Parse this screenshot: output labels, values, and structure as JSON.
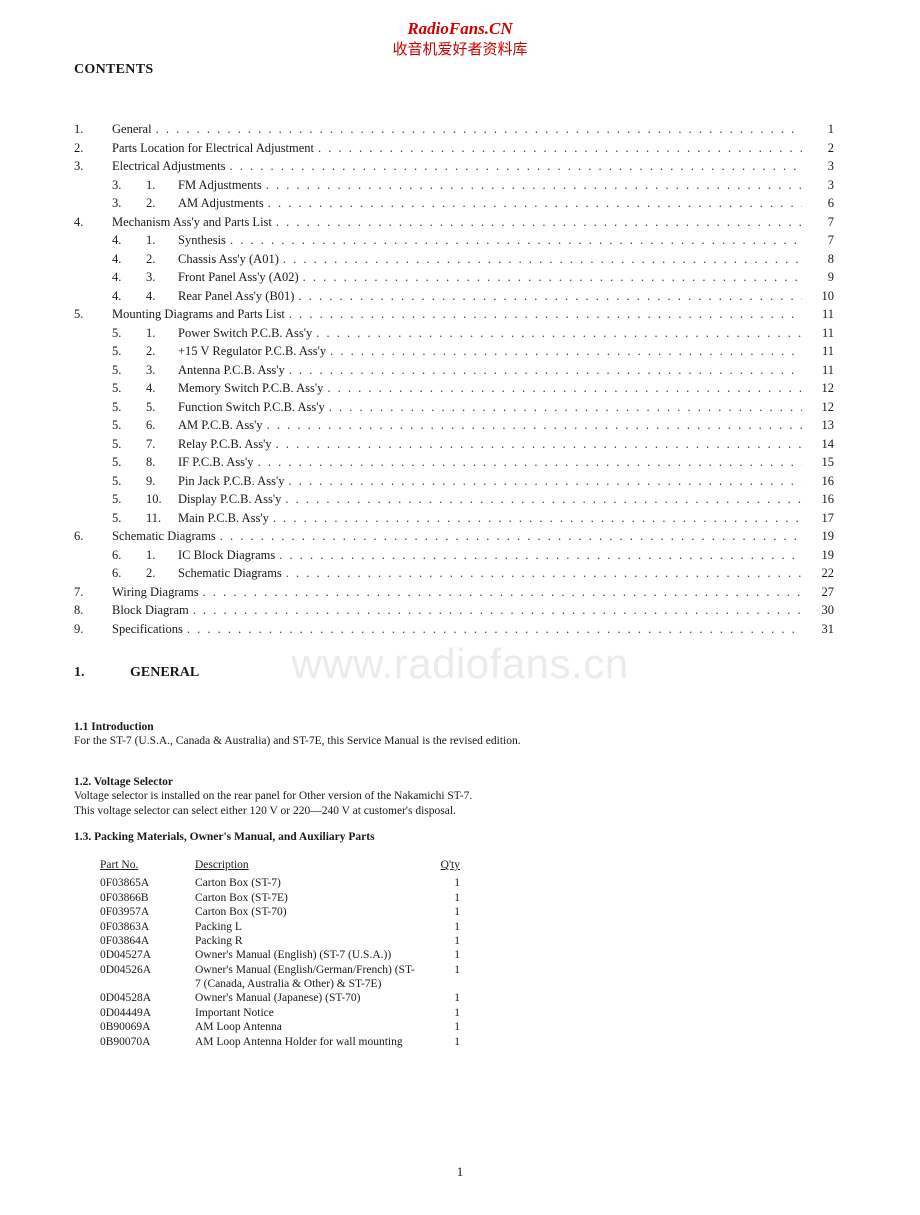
{
  "watermark": {
    "header_line1": "RadioFans.CN",
    "header_line2": "收音机爱好者资料库",
    "body": "www.radiofans.cn"
  },
  "contents_heading": "CONTENTS",
  "toc": [
    {
      "n": "1.",
      "title": "General",
      "page": "1"
    },
    {
      "n": "2.",
      "title": "Parts Location for Electrical Adjustment",
      "page": "2"
    },
    {
      "n": "3.",
      "title": "Electrical Adjustments",
      "page": "3"
    },
    {
      "sa": "3.",
      "sb": "1.",
      "title": "FM Adjustments",
      "page": "3"
    },
    {
      "sa": "3.",
      "sb": "2.",
      "title": "AM Adjustments",
      "page": "6"
    },
    {
      "n": "4.",
      "title": "Mechanism Ass'y and Parts List",
      "page": "7"
    },
    {
      "sa": "4.",
      "sb": "1.",
      "title": "Synthesis",
      "page": "7"
    },
    {
      "sa": "4.",
      "sb": "2.",
      "title": "Chassis Ass'y (A01)",
      "page": "8"
    },
    {
      "sa": "4.",
      "sb": "3.",
      "title": "Front Panel Ass'y (A02)",
      "page": "9"
    },
    {
      "sa": "4.",
      "sb": "4.",
      "title": "Rear Panel Ass'y (B01)",
      "page": "10"
    },
    {
      "n": "5.",
      "title": "Mounting Diagrams and Parts List",
      "page": "11"
    },
    {
      "sa": "5.",
      "sb": "1.",
      "title": "Power Switch P.C.B. Ass'y",
      "page": "11"
    },
    {
      "sa": "5.",
      "sb": "2.",
      "title": "+15 V Regulator P.C.B. Ass'y",
      "page": "11"
    },
    {
      "sa": "5.",
      "sb": "3.",
      "title": "Antenna P.C.B. Ass'y",
      "page": "11"
    },
    {
      "sa": "5.",
      "sb": "4.",
      "title": "Memory Switch P.C.B. Ass'y",
      "page": "12"
    },
    {
      "sa": "5.",
      "sb": "5.",
      "title": "Function Switch P.C.B. Ass'y",
      "page": "12"
    },
    {
      "sa": "5.",
      "sb": "6.",
      "title": "AM P.C.B. Ass'y",
      "page": "13"
    },
    {
      "sa": "5.",
      "sb": "7.",
      "title": "Relay P.C.B. Ass'y",
      "page": "14"
    },
    {
      "sa": "5.",
      "sb": "8.",
      "title": "IF P.C.B. Ass'y",
      "page": "15"
    },
    {
      "sa": "5.",
      "sb": "9.",
      "title": "Pin Jack P.C.B. Ass'y",
      "page": "16"
    },
    {
      "sa": "5.",
      "sb": "10.",
      "title": "Display P.C.B. Ass'y",
      "page": "16"
    },
    {
      "sa": "5.",
      "sb": "11.",
      "title": "Main P.C.B. Ass'y",
      "page": "17"
    },
    {
      "n": "6.",
      "title": "Schematic Diagrams",
      "page": "19"
    },
    {
      "sa": "6.",
      "sb": "1.",
      "title": "IC Block Diagrams",
      "page": "19"
    },
    {
      "sa": "6.",
      "sb": "2.",
      "title": "Schematic Diagrams",
      "page": "22"
    },
    {
      "n": "7.",
      "title": "Wiring Diagrams",
      "page": "27"
    },
    {
      "n": "8.",
      "title": "Block Diagram",
      "page": "30"
    },
    {
      "n": "9.",
      "title": "Specifications",
      "page": "31"
    }
  ],
  "s1": {
    "num": "1.",
    "title": "GENERAL",
    "b11_head": "1.1  Introduction",
    "b11_text": "For the ST-7 (U.S.A., Canada & Australia) and ST-7E, this Service Manual is the revised edition.",
    "b12_head": "1.2.  Voltage Selector",
    "b12_text1": "Voltage selector is installed on the rear panel for Other version of the Nakamichi ST-7.",
    "b12_text2": "This voltage selector can select either 120 V or 220—240 V at customer's disposal.",
    "b13_head": "1.3.  Packing Materials, Owner's Manual, and Auxiliary Parts"
  },
  "parts_table": {
    "h_part": "Part No.",
    "h_desc": "Description",
    "h_qty": "Q'ty",
    "rows": [
      {
        "p": "0F03865A",
        "d": "Carton Box (ST-7)",
        "q": "1"
      },
      {
        "p": "0F03866B",
        "d": "Carton Box (ST-7E)",
        "q": "1"
      },
      {
        "p": "0F03957A",
        "d": "Carton Box (ST-70)",
        "q": "1"
      },
      {
        "p": "0F03863A",
        "d": "Packing L",
        "q": "1"
      },
      {
        "p": "0F03864A",
        "d": "Packing R",
        "q": "1"
      },
      {
        "p": "0D04527A",
        "d": "Owner's Manual (English) (ST-7 (U.S.A.))",
        "q": "1"
      },
      {
        "p": "0D04526A",
        "d": "Owner's Manual (English/German/French) (ST-7 (Canada, Australia & Other) & ST-7E)",
        "q": "1"
      },
      {
        "p": "0D04528A",
        "d": "Owner's Manual (Japanese) (ST-70)",
        "q": "1"
      },
      {
        "p": "0D04449A",
        "d": "Important Notice",
        "q": "1"
      },
      {
        "p": "0B90069A",
        "d": "AM Loop Antenna",
        "q": "1"
      },
      {
        "p": "0B90070A",
        "d": "AM Loop Antenna Holder for wall mounting",
        "q": "1"
      }
    ]
  },
  "page_number": "1"
}
